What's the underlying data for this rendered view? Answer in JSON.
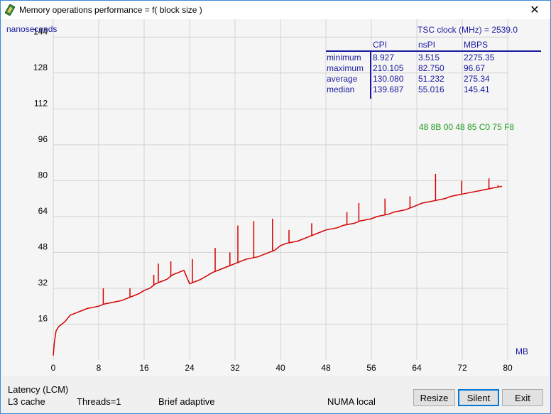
{
  "window": {
    "title": "Memory operations performance = f( block size )",
    "close_glyph": "✕"
  },
  "chart_data": {
    "type": "line",
    "ylabel": "nanoseconds",
    "xlabel": "MB",
    "xlim": [
      0,
      80
    ],
    "ylim": [
      0,
      152
    ],
    "x_ticks": [
      "0",
      "8",
      "16",
      "24",
      "32",
      "40",
      "48",
      "56",
      "64",
      "72",
      "80"
    ],
    "y_ticks": [
      "16",
      "32",
      "48",
      "64",
      "80",
      "96",
      "112",
      "128",
      "144"
    ],
    "grid": true,
    "line_color": "#d40000",
    "series": [
      {
        "x": [
          0,
          0.2,
          0.5,
          1,
          2,
          3,
          4,
          5,
          6,
          7,
          8,
          9,
          10,
          11,
          12,
          13,
          14,
          15,
          16,
          17,
          18,
          19,
          20,
          21,
          22,
          23,
          24,
          25,
          26,
          27,
          28,
          29,
          30,
          31,
          32,
          33,
          34,
          35,
          36,
          37,
          38,
          39,
          40,
          41,
          42,
          43,
          44,
          45,
          46,
          47,
          48,
          49,
          50,
          51,
          52,
          53,
          54,
          55,
          56,
          57,
          58,
          59,
          60,
          61,
          62,
          63,
          64,
          65,
          66,
          67,
          68,
          69,
          70,
          71,
          72,
          73,
          74,
          75,
          76,
          77,
          78,
          79
        ],
        "values": [
          2,
          8,
          13,
          15,
          17,
          20,
          21,
          22,
          23,
          23.5,
          24,
          25,
          25.5,
          26,
          26.5,
          27.5,
          28.5,
          29.5,
          31,
          32,
          34,
          35,
          36,
          38,
          39,
          40,
          34,
          35,
          36,
          37.5,
          39,
          40,
          41,
          42,
          43,
          44,
          45,
          45.5,
          46,
          47,
          48,
          49,
          51,
          52,
          52.5,
          53,
          54,
          55,
          56,
          57,
          58,
          58.5,
          59,
          60,
          60.5,
          61,
          62,
          62.5,
          63,
          64,
          64.5,
          65,
          66,
          66.5,
          67,
          68,
          69,
          70,
          70.5,
          71,
          71.5,
          72,
          73,
          73.5,
          74,
          74.5,
          75,
          75.5,
          76,
          76.5,
          77,
          77.5
        ]
      }
    ],
    "spikes": [
      [
        8.8,
        32
      ],
      [
        13.5,
        32
      ],
      [
        17.7,
        38
      ],
      [
        18.5,
        43
      ],
      [
        20.7,
        44
      ],
      [
        24.5,
        45
      ],
      [
        28.5,
        50
      ],
      [
        31.1,
        48
      ],
      [
        32.5,
        60
      ],
      [
        35.3,
        62
      ],
      [
        38.6,
        63
      ],
      [
        41.5,
        58
      ],
      [
        45.5,
        61
      ],
      [
        51.7,
        66
      ],
      [
        53.8,
        70
      ],
      [
        58.4,
        72
      ],
      [
        62.8,
        73
      ],
      [
        67.3,
        83
      ],
      [
        71.9,
        80
      ],
      [
        76.7,
        81
      ],
      [
        78.3,
        78
      ]
    ]
  },
  "stats": {
    "tsc": "TSC clock (MHz)  = 2539.0",
    "headers": [
      "CPI",
      "nsPI",
      "MBPS"
    ],
    "rows": [
      {
        "label": "minimum",
        "cpi": "8.927",
        "nspi": "3.515",
        "mbps": "2275.35"
      },
      {
        "label": "maximum",
        "cpi": "210.105",
        "nspi": "82.750",
        "mbps": "96.67"
      },
      {
        "label": "average",
        "cpi": "130.080",
        "nspi": "51.232",
        "mbps": "275.34"
      },
      {
        "label": "median",
        "cpi": "139.687",
        "nspi": "55.016",
        "mbps": "145.41"
      }
    ],
    "opcodes": "48  8B  00   48  85  C0  75  F8",
    "text_color": "#1a1aa0",
    "opcode_color": "#1a9a1a"
  },
  "status": {
    "mode": "Latency (LCM)",
    "cache": "L3 cache",
    "threads": "Threads=1",
    "adaptive": "Brief adaptive",
    "numa": "NUMA local"
  },
  "buttons": {
    "resize": "Resize",
    "silent": "Silent",
    "exit": "Exit"
  }
}
